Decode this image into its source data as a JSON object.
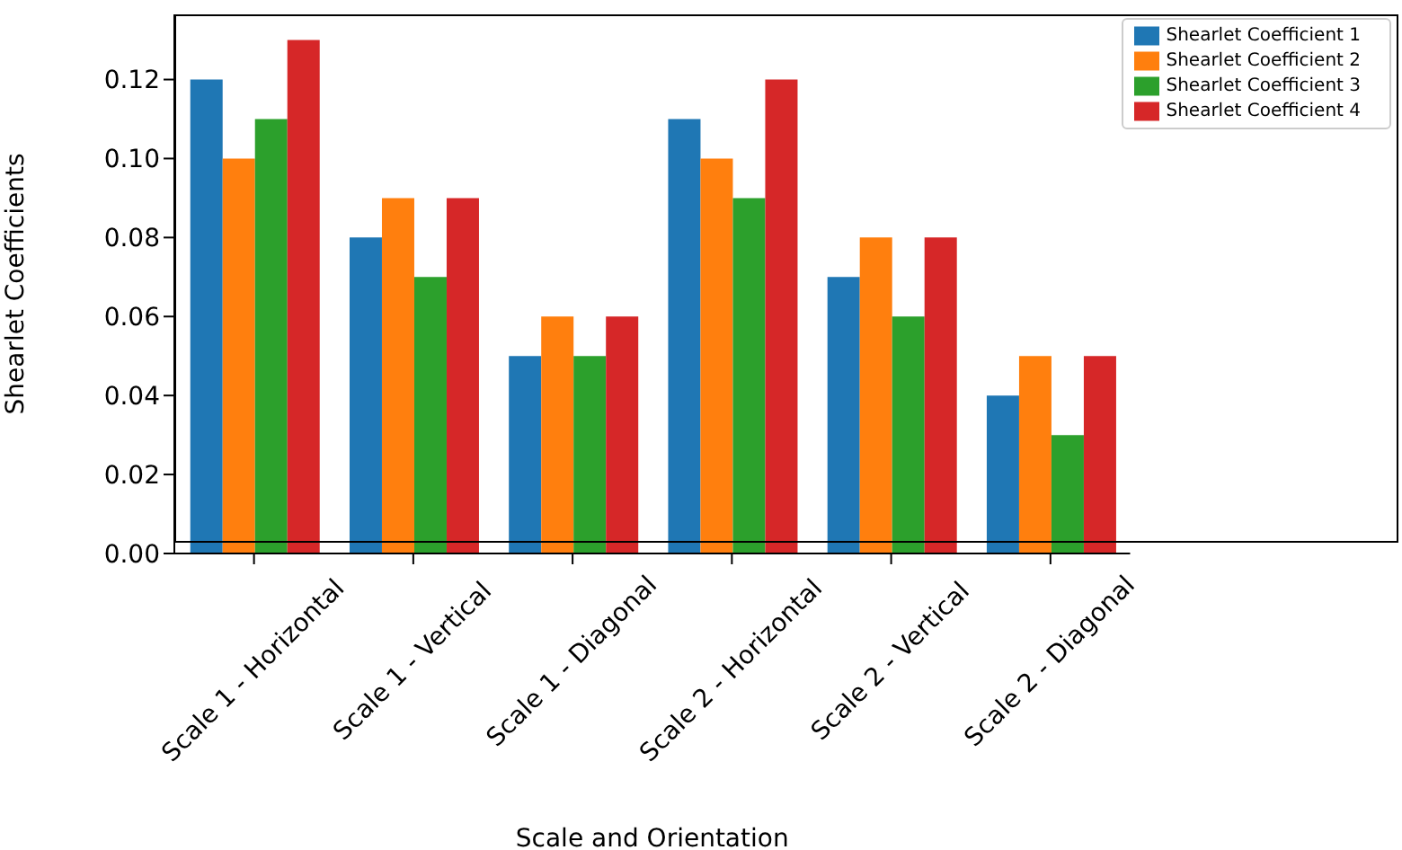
{
  "chart_data": {
    "type": "bar",
    "xlabel": "Scale and Orientation",
    "ylabel": "Shearlet Coefficients",
    "categories": [
      "Scale 1 - Horizontal",
      "Scale 1 - Vertical",
      "Scale 1 - Diagonal",
      "Scale 2 - Horizontal",
      "Scale 2 - Vertical",
      "Scale 2 - Diagonal"
    ],
    "series": [
      {
        "name": "Shearlet Coefficient 1",
        "color": "#1f77b4",
        "values": [
          0.12,
          0.08,
          0.05,
          0.11,
          0.07,
          0.04
        ]
      },
      {
        "name": "Shearlet Coefficient 2",
        "color": "#ff7f0e",
        "values": [
          0.1,
          0.09,
          0.06,
          0.1,
          0.08,
          0.05
        ]
      },
      {
        "name": "Shearlet Coefficient 3",
        "color": "#2ca02c",
        "values": [
          0.11,
          0.07,
          0.05,
          0.09,
          0.06,
          0.03
        ]
      },
      {
        "name": "Shearlet Coefficient 4",
        "color": "#d62728",
        "values": [
          0.13,
          0.09,
          0.06,
          0.12,
          0.08,
          0.05
        ]
      }
    ],
    "ylim": [
      0,
      0.1365
    ],
    "yticks": [
      {
        "value": 0,
        "label": "0.00"
      },
      {
        "value": 0.02,
        "label": "0.02"
      },
      {
        "value": 0.04,
        "label": "0.04"
      },
      {
        "value": 0.06,
        "label": "0.06"
      },
      {
        "value": 0.08,
        "label": "0.08"
      },
      {
        "value": 0.1,
        "label": "0.10"
      },
      {
        "value": 0.12,
        "label": "0.12"
      }
    ],
    "grid": false,
    "legend": "top right"
  }
}
